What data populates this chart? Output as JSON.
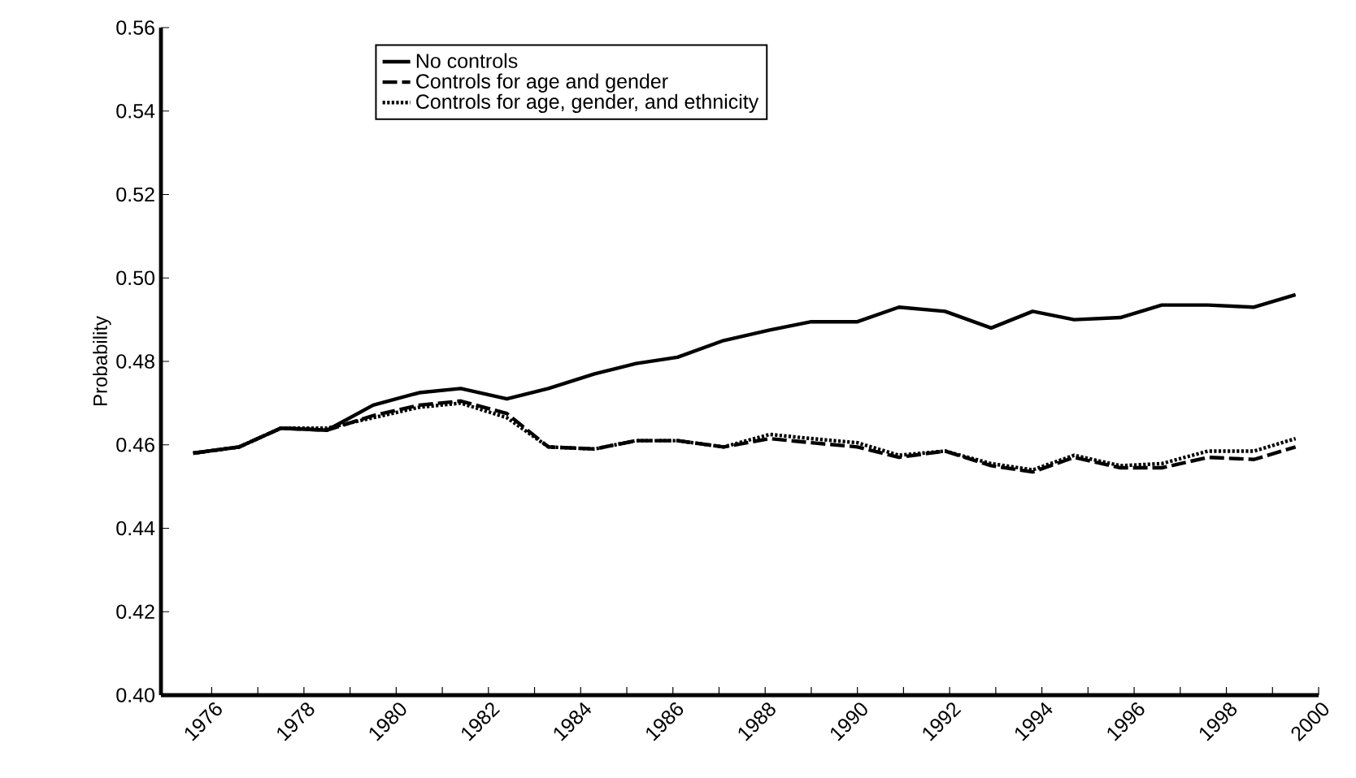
{
  "chart_data": {
    "type": "line",
    "ylabel": "Probability",
    "x": [
      1975.6,
      1976.6,
      1977.5,
      1978.5,
      1979.5,
      1980.5,
      1981.4,
      1982.4,
      1983.3,
      1984.3,
      1985.2,
      1986.1,
      1987.1,
      1988.1,
      1989.0,
      1990.0,
      1990.9,
      1991.9,
      1992.9,
      1993.8,
      1994.7,
      1995.7,
      1996.6,
      1997.6,
      1998.6,
      1999.5
    ],
    "series": [
      {
        "name": "No controls",
        "color": "#000000",
        "line_style": "solid",
        "values": [
          0.458,
          0.4595,
          0.464,
          0.4635,
          0.4695,
          0.4725,
          0.4735,
          0.471,
          0.4735,
          0.477,
          0.4795,
          0.481,
          0.485,
          0.4875,
          0.4895,
          0.4895,
          0.493,
          0.492,
          0.488,
          0.492,
          0.49,
          0.4905,
          0.4935,
          0.4935,
          0.493,
          0.496
        ]
      },
      {
        "name": "Controls for age and gender",
        "color": "#000000",
        "line_style": "dashed",
        "values": [
          0.458,
          0.4595,
          0.464,
          0.4635,
          0.467,
          0.4695,
          0.4705,
          0.4675,
          0.4595,
          0.459,
          0.461,
          0.461,
          0.4595,
          0.4615,
          0.4605,
          0.4595,
          0.457,
          0.4585,
          0.455,
          0.4535,
          0.457,
          0.4545,
          0.4545,
          0.457,
          0.4565,
          0.4595
        ]
      },
      {
        "name": "Controls for age, gender, and ethnicity",
        "color": "#000000",
        "line_style": "dotted",
        "values": [
          0.458,
          0.4595,
          0.464,
          0.464,
          0.4665,
          0.469,
          0.47,
          0.4665,
          0.4595,
          0.459,
          0.461,
          0.461,
          0.4595,
          0.4625,
          0.4615,
          0.4605,
          0.4575,
          0.4585,
          0.4555,
          0.454,
          0.4575,
          0.455,
          0.4555,
          0.4585,
          0.4585,
          0.4615
        ]
      }
    ],
    "xlim": [
      1974.9,
      2000
    ],
    "xticks": [
      {
        "value": 1976,
        "label": "1976"
      },
      {
        "value": 1977,
        "label": null
      },
      {
        "value": 1978,
        "label": "1978"
      },
      {
        "value": 1979,
        "label": null
      },
      {
        "value": 1980,
        "label": "1980"
      },
      {
        "value": 1981,
        "label": null
      },
      {
        "value": 1982,
        "label": "1982"
      },
      {
        "value": 1983,
        "label": null
      },
      {
        "value": 1984,
        "label": "1984"
      },
      {
        "value": 1985,
        "label": null
      },
      {
        "value": 1986,
        "label": "1986"
      },
      {
        "value": 1987,
        "label": null
      },
      {
        "value": 1988,
        "label": "1988"
      },
      {
        "value": 1989,
        "label": null
      },
      {
        "value": 1990,
        "label": "1990"
      },
      {
        "value": 1991,
        "label": null
      },
      {
        "value": 1992,
        "label": "1992"
      },
      {
        "value": 1993,
        "label": null
      },
      {
        "value": 1994,
        "label": "1994"
      },
      {
        "value": 1995,
        "label": null
      },
      {
        "value": 1996,
        "label": "1996"
      },
      {
        "value": 1997,
        "label": null
      },
      {
        "value": 1998,
        "label": "1998"
      },
      {
        "value": 1999,
        "label": null
      },
      {
        "value": 2000,
        "label": "2000"
      }
    ],
    "ylim": [
      0.4,
      0.56
    ],
    "yticks": [
      {
        "value": 0.4,
        "label": "0.40"
      },
      {
        "value": 0.42,
        "label": "0.42"
      },
      {
        "value": 0.44,
        "label": "0.44"
      },
      {
        "value": 0.46,
        "label": "0.46"
      },
      {
        "value": 0.48,
        "label": "0.48"
      },
      {
        "value": 0.5,
        "label": "0.50"
      },
      {
        "value": 0.52,
        "label": "0.52"
      },
      {
        "value": 0.54,
        "label": "0.54"
      },
      {
        "value": 0.56,
        "label": "0.56"
      }
    ],
    "grid": false,
    "legend": "top",
    "marker": "none"
  }
}
